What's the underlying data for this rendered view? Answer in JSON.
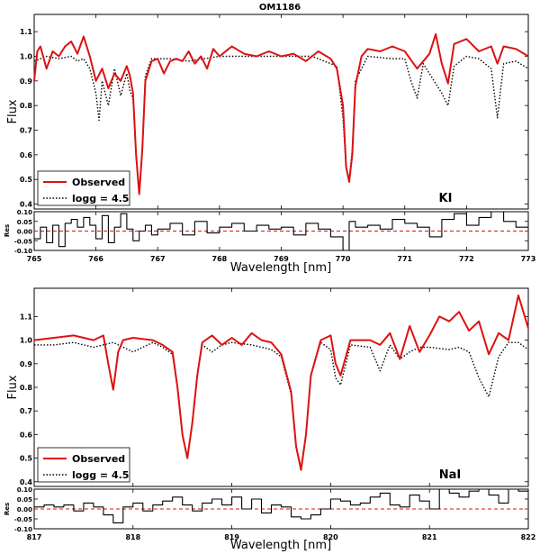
{
  "figure": {
    "title": "OM1186"
  },
  "chart_data": [
    {
      "type": "line",
      "panel": "top",
      "element_label": "KI",
      "xlabel": "Wavelength [nm]",
      "ylabel": "Flux",
      "xlim": [
        765,
        773
      ],
      "ylim": [
        0.38,
        1.17
      ],
      "xticks": [
        "765",
        "766",
        "767",
        "768",
        "769",
        "770",
        "771",
        "772",
        "773"
      ],
      "yticks": [
        "0.4",
        "0.5",
        "0.6",
        "0.7",
        "0.8",
        "0.9",
        "1.0",
        "1.1"
      ],
      "legend": {
        "placement": "lower-left",
        "entries": [
          "Observed",
          "logg = 4.5"
        ]
      },
      "series": [
        {
          "name": "Observed",
          "color": "#dd1111",
          "style": "solid",
          "x": [
            765.0,
            765.05,
            765.1,
            765.2,
            765.3,
            765.4,
            765.5,
            765.6,
            765.7,
            765.8,
            765.9,
            766.0,
            766.1,
            766.2,
            766.3,
            766.4,
            766.5,
            766.55,
            766.6,
            766.65,
            766.7,
            766.75,
            766.8,
            766.9,
            767.0,
            767.1,
            767.2,
            767.3,
            767.4,
            767.5,
            767.6,
            767.7,
            767.8,
            767.9,
            768.0,
            768.2,
            768.4,
            768.6,
            768.8,
            769.0,
            769.2,
            769.4,
            769.6,
            769.8,
            769.9,
            770.0,
            770.05,
            770.1,
            770.15,
            770.2,
            770.3,
            770.4,
            770.6,
            770.8,
            771.0,
            771.2,
            771.4,
            771.5,
            771.6,
            771.7,
            771.8,
            772.0,
            772.2,
            772.4,
            772.5,
            772.6,
            772.8,
            773.0
          ],
          "y": [
            0.9,
            1.02,
            1.04,
            0.95,
            1.02,
            1.0,
            1.04,
            1.06,
            1.01,
            1.08,
            1.0,
            0.9,
            0.95,
            0.87,
            0.93,
            0.9,
            0.96,
            0.92,
            0.85,
            0.6,
            0.44,
            0.62,
            0.9,
            0.98,
            0.99,
            0.93,
            0.98,
            0.99,
            0.98,
            1.02,
            0.97,
            1.0,
            0.95,
            1.03,
            1.0,
            1.04,
            1.01,
            1.0,
            1.02,
            1.0,
            1.01,
            0.98,
            1.02,
            0.99,
            0.95,
            0.8,
            0.55,
            0.49,
            0.6,
            0.88,
            1.0,
            1.03,
            1.02,
            1.04,
            1.02,
            0.95,
            1.01,
            1.09,
            0.97,
            0.89,
            1.05,
            1.07,
            1.02,
            1.04,
            0.97,
            1.04,
            1.03,
            1.0
          ]
        },
        {
          "name": "logg = 4.5",
          "color": "#000000",
          "style": "dotted",
          "x": [
            765.0,
            765.2,
            765.4,
            765.6,
            765.7,
            765.8,
            765.9,
            766.0,
            766.05,
            766.1,
            766.2,
            766.3,
            766.4,
            766.5,
            766.55,
            766.6,
            766.65,
            766.7,
            766.75,
            766.8,
            766.9,
            767.2,
            767.5,
            768.0,
            768.5,
            769.0,
            769.5,
            769.9,
            770.0,
            770.05,
            770.1,
            770.15,
            770.2,
            770.4,
            770.8,
            771.0,
            771.1,
            771.2,
            771.3,
            771.6,
            771.7,
            771.8,
            772.0,
            772.2,
            772.4,
            772.5,
            772.6,
            772.8,
            773.0
          ],
          "y": [
            0.98,
            1.0,
            0.99,
            1.0,
            0.98,
            0.99,
            0.95,
            0.85,
            0.74,
            0.9,
            0.8,
            0.95,
            0.84,
            0.93,
            0.86,
            0.83,
            0.6,
            0.45,
            0.62,
            0.92,
            0.99,
            0.99,
            0.98,
            1.0,
            1.0,
            1.0,
            1.0,
            0.96,
            0.75,
            0.55,
            0.5,
            0.62,
            0.9,
            1.0,
            0.99,
            0.99,
            0.9,
            0.83,
            0.97,
            0.85,
            0.8,
            0.96,
            1.0,
            0.99,
            0.95,
            0.75,
            0.97,
            0.98,
            0.95
          ]
        }
      ]
    },
    {
      "type": "line",
      "panel": "top-residuals",
      "xlabel": "Wavelength [nm]",
      "ylabel": "Res",
      "xlim": [
        765,
        773
      ],
      "ylim": [
        -0.1,
        0.1
      ],
      "yticks": [
        "-0.10",
        "-0.05",
        "0.00",
        "0.05",
        "0.10"
      ],
      "zero_line": {
        "color": "#dd1111",
        "style": "dashed"
      },
      "series": [
        {
          "name": "",
          "color": "#000000",
          "style": "steps",
          "x": [
            765.0,
            765.1,
            765.2,
            765.3,
            765.4,
            765.5,
            765.6,
            765.7,
            765.8,
            765.9,
            766.0,
            766.1,
            766.2,
            766.3,
            766.4,
            766.5,
            766.6,
            766.7,
            766.8,
            766.9,
            767.0,
            767.2,
            767.4,
            767.6,
            767.8,
            768.0,
            768.2,
            768.4,
            768.6,
            768.8,
            769.0,
            769.2,
            769.4,
            769.6,
            769.8,
            770.0,
            770.1,
            770.2,
            770.4,
            770.6,
            770.8,
            771.0,
            771.2,
            771.4,
            771.6,
            771.8,
            772.0,
            772.2,
            772.4,
            772.6,
            772.8
          ],
          "y": [
            -0.04,
            0.02,
            -0.06,
            0.03,
            -0.08,
            0.04,
            0.06,
            0.02,
            0.07,
            0.03,
            -0.04,
            0.08,
            -0.06,
            0.02,
            0.09,
            0.01,
            -0.05,
            0.0,
            0.03,
            -0.02,
            0.01,
            0.04,
            -0.02,
            0.05,
            -0.01,
            0.02,
            0.04,
            0.0,
            0.03,
            0.01,
            0.02,
            -0.02,
            0.04,
            0.01,
            -0.03,
            -0.1,
            0.05,
            0.02,
            0.03,
            0.01,
            0.06,
            0.04,
            0.02,
            -0.03,
            0.06,
            0.09,
            0.03,
            0.07,
            0.1,
            0.05,
            0.02
          ]
        }
      ]
    },
    {
      "type": "line",
      "panel": "bottom",
      "element_label": "NaI",
      "xlabel": "Wavelength [nm]",
      "ylabel": "Flux",
      "xlim": [
        817,
        822
      ],
      "ylim": [
        0.38,
        1.22
      ],
      "xticks": [
        "817",
        "818",
        "819",
        "820",
        "821",
        "822"
      ],
      "yticks": [
        "0.4",
        "0.5",
        "0.6",
        "0.7",
        "0.8",
        "0.9",
        "1.0",
        "1.1"
      ],
      "legend": {
        "placement": "lower-left",
        "entries": [
          "Observed",
          "logg = 4.5"
        ]
      },
      "series": [
        {
          "name": "Observed",
          "color": "#dd1111",
          "style": "solid",
          "x": [
            817.0,
            817.2,
            817.4,
            817.6,
            817.7,
            817.75,
            817.8,
            817.85,
            817.9,
            818.0,
            818.2,
            818.3,
            818.4,
            818.45,
            818.5,
            818.55,
            818.6,
            818.65,
            818.7,
            818.8,
            818.9,
            819.0,
            819.1,
            819.2,
            819.3,
            819.4,
            819.5,
            819.6,
            819.65,
            819.7,
            819.75,
            819.8,
            819.9,
            820.0,
            820.05,
            820.1,
            820.2,
            820.4,
            820.5,
            820.6,
            820.7,
            820.8,
            820.9,
            821.0,
            821.1,
            821.2,
            821.3,
            821.4,
            821.5,
            821.6,
            821.7,
            821.8,
            821.9,
            822.0
          ],
          "y": [
            1.0,
            1.01,
            1.02,
            1.0,
            1.02,
            0.9,
            0.79,
            0.95,
            1.0,
            1.01,
            1.0,
            0.98,
            0.95,
            0.8,
            0.6,
            0.5,
            0.65,
            0.85,
            0.99,
            1.02,
            0.98,
            1.01,
            0.98,
            1.03,
            1.0,
            0.99,
            0.94,
            0.78,
            0.55,
            0.45,
            0.6,
            0.85,
            1.0,
            1.02,
            0.9,
            0.85,
            1.0,
            1.0,
            0.98,
            1.03,
            0.92,
            1.06,
            0.95,
            1.02,
            1.1,
            1.08,
            1.12,
            1.04,
            1.08,
            0.94,
            1.03,
            1.0,
            1.19,
            1.05
          ]
        },
        {
          "name": "logg = 4.5",
          "color": "#000000",
          "style": "dotted",
          "x": [
            817.0,
            817.2,
            817.4,
            817.6,
            817.8,
            818.0,
            818.2,
            818.3,
            818.4,
            818.45,
            818.5,
            818.55,
            818.6,
            818.65,
            818.7,
            818.8,
            818.9,
            819.0,
            819.2,
            819.4,
            819.5,
            819.6,
            819.65,
            819.7,
            819.75,
            819.8,
            819.9,
            820.0,
            820.05,
            820.1,
            820.2,
            820.4,
            820.5,
            820.6,
            820.7,
            820.8,
            820.9,
            821.0,
            821.2,
            821.3,
            821.4,
            821.5,
            821.6,
            821.7,
            821.8,
            821.9,
            822.0
          ],
          "y": [
            0.98,
            0.98,
            0.99,
            0.97,
            0.99,
            0.95,
            0.99,
            0.97,
            0.94,
            0.8,
            0.6,
            0.5,
            0.65,
            0.85,
            0.98,
            0.95,
            0.98,
            0.99,
            0.98,
            0.96,
            0.93,
            0.77,
            0.55,
            0.46,
            0.6,
            0.85,
            0.99,
            0.96,
            0.84,
            0.81,
            0.98,
            0.97,
            0.87,
            0.98,
            0.92,
            0.95,
            0.97,
            0.97,
            0.96,
            0.97,
            0.95,
            0.84,
            0.76,
            0.93,
            0.99,
            0.99,
            0.96
          ]
        }
      ]
    },
    {
      "type": "line",
      "panel": "bottom-residuals",
      "xlabel": "Wavelength [nm]",
      "ylabel": "Res",
      "xlim": [
        817,
        822
      ],
      "ylim": [
        -0.1,
        0.1
      ],
      "yticks": [
        "-0.10",
        "-0.05",
        "0.00",
        "0.05",
        "0.10"
      ],
      "zero_line": {
        "color": "#dd1111",
        "style": "dashed"
      },
      "series": [
        {
          "name": "",
          "color": "#000000",
          "style": "steps",
          "x": [
            817.0,
            817.1,
            817.2,
            817.3,
            817.4,
            817.5,
            817.6,
            817.7,
            817.8,
            817.9,
            818.0,
            818.1,
            818.2,
            818.3,
            818.4,
            818.5,
            818.6,
            818.7,
            818.8,
            818.9,
            819.0,
            819.1,
            819.2,
            819.3,
            819.4,
            819.5,
            819.6,
            819.7,
            819.8,
            819.9,
            820.0,
            820.1,
            820.2,
            820.3,
            820.4,
            820.5,
            820.6,
            820.7,
            820.8,
            820.9,
            821.0,
            821.1,
            821.2,
            821.3,
            821.4,
            821.5,
            821.6,
            821.7,
            821.8,
            821.9
          ],
          "y": [
            0.01,
            0.02,
            0.01,
            0.02,
            -0.01,
            0.03,
            0.01,
            -0.03,
            -0.07,
            0.01,
            0.03,
            -0.01,
            0.02,
            0.04,
            0.06,
            0.02,
            -0.01,
            0.03,
            0.05,
            0.02,
            0.06,
            0.0,
            0.05,
            -0.02,
            0.02,
            0.01,
            -0.04,
            -0.05,
            -0.03,
            0.0,
            0.05,
            0.04,
            0.02,
            0.03,
            0.06,
            0.08,
            0.02,
            0.01,
            0.07,
            0.04,
            0.0,
            0.1,
            0.08,
            0.06,
            0.09,
            0.1,
            0.07,
            0.03,
            0.1,
            0.09
          ]
        }
      ]
    }
  ]
}
